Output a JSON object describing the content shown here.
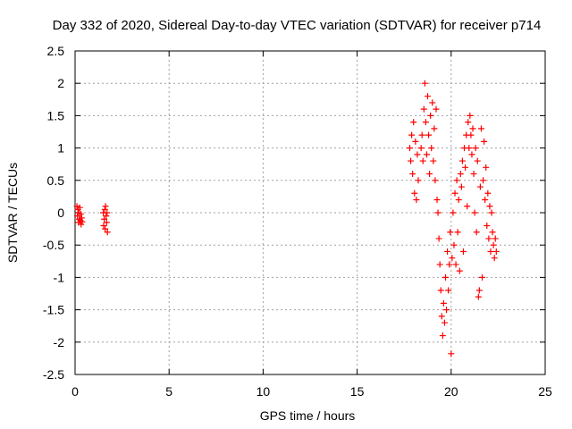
{
  "chart_data": {
    "type": "scatter",
    "title": "Day 332 of 2020, Sidereal Day-to-day VTEC variation (SDTVAR) for receiver p714",
    "xlabel": "GPS time / hours",
    "ylabel": "SDTVAR / TECUs",
    "xlim": [
      0,
      25
    ],
    "ylim": [
      -2.5,
      2.5
    ],
    "xticks": [
      "0",
      "5",
      "10",
      "15",
      "20",
      "25"
    ],
    "yticks": [
      "2.5",
      "2",
      "1.5",
      "1",
      "0.5",
      "0",
      "-0.5",
      "-1",
      "-1.5",
      "-2",
      "-2.5"
    ],
    "grid": true,
    "marker": "+",
    "color": "#ff0000",
    "series": [
      {
        "name": "SDTVAR",
        "points": [
          [
            0.1,
            0.1
          ],
          [
            0.12,
            -0.05
          ],
          [
            0.15,
            0.05
          ],
          [
            0.18,
            -0.15
          ],
          [
            0.2,
            0.0
          ],
          [
            0.22,
            -0.1
          ],
          [
            0.25,
            0.08
          ],
          [
            0.28,
            -0.12
          ],
          [
            0.3,
            -0.02
          ],
          [
            0.32,
            -0.18
          ],
          [
            0.35,
            -0.08
          ],
          [
            0.38,
            -0.14
          ],
          [
            1.5,
            0.0
          ],
          [
            1.52,
            -0.2
          ],
          [
            1.55,
            -0.1
          ],
          [
            1.58,
            0.05
          ],
          [
            1.6,
            -0.25
          ],
          [
            1.62,
            0.1
          ],
          [
            1.65,
            -0.05
          ],
          [
            1.68,
            -0.15
          ],
          [
            1.7,
            0.0
          ],
          [
            1.72,
            -0.3
          ],
          [
            17.8,
            1.0
          ],
          [
            17.85,
            0.8
          ],
          [
            17.9,
            1.2
          ],
          [
            17.95,
            0.6
          ],
          [
            18.0,
            1.4
          ],
          [
            18.05,
            0.3
          ],
          [
            18.1,
            1.1
          ],
          [
            18.15,
            0.2
          ],
          [
            18.2,
            0.9
          ],
          [
            18.25,
            0.5
          ],
          [
            18.4,
            1.0
          ],
          [
            18.45,
            1.2
          ],
          [
            18.5,
            0.8
          ],
          [
            18.55,
            1.6
          ],
          [
            18.6,
            2.0
          ],
          [
            18.65,
            1.4
          ],
          [
            18.7,
            0.9
          ],
          [
            18.75,
            1.8
          ],
          [
            18.8,
            1.2
          ],
          [
            18.85,
            0.6
          ],
          [
            18.9,
            1.5
          ],
          [
            18.95,
            1.0
          ],
          [
            19.0,
            1.7
          ],
          [
            19.05,
            0.8
          ],
          [
            19.1,
            1.3
          ],
          [
            19.15,
            0.5
          ],
          [
            19.2,
            1.6
          ],
          [
            19.25,
            0.2
          ],
          [
            19.3,
            0.0
          ],
          [
            19.35,
            -0.4
          ],
          [
            19.4,
            -0.8
          ],
          [
            19.45,
            -1.2
          ],
          [
            19.5,
            -1.6
          ],
          [
            19.55,
            -1.9
          ],
          [
            19.6,
            -1.4
          ],
          [
            19.65,
            -1.7
          ],
          [
            19.7,
            -1.0
          ],
          [
            19.75,
            -1.5
          ],
          [
            19.8,
            -0.6
          ],
          [
            19.85,
            -1.2
          ],
          [
            19.9,
            -0.8
          ],
          [
            19.95,
            -0.3
          ],
          [
            20.0,
            -2.18
          ],
          [
            20.05,
            -0.7
          ],
          [
            20.1,
            0.0
          ],
          [
            20.15,
            -0.5
          ],
          [
            20.2,
            0.3
          ],
          [
            20.25,
            -0.8
          ],
          [
            20.3,
            0.5
          ],
          [
            20.35,
            -0.3
          ],
          [
            20.4,
            0.2
          ],
          [
            20.45,
            -0.9
          ],
          [
            20.5,
            0.6
          ],
          [
            20.55,
            0.4
          ],
          [
            20.6,
            0.8
          ],
          [
            20.65,
            -0.6
          ],
          [
            20.7,
            1.0
          ],
          [
            20.75,
            0.7
          ],
          [
            20.8,
            1.2
          ],
          [
            20.85,
            0.1
          ],
          [
            20.9,
            1.4
          ],
          [
            20.95,
            1.0
          ],
          [
            21.0,
            1.5
          ],
          [
            21.05,
            1.2
          ],
          [
            21.1,
            0.9
          ],
          [
            21.15,
            1.3
          ],
          [
            21.2,
            0.6
          ],
          [
            21.25,
            0.0
          ],
          [
            21.3,
            1.0
          ],
          [
            21.35,
            -0.3
          ],
          [
            21.4,
            0.8
          ],
          [
            21.45,
            -1.3
          ],
          [
            21.5,
            -1.2
          ],
          [
            21.55,
            0.4
          ],
          [
            21.6,
            1.3
          ],
          [
            21.65,
            -1.0
          ],
          [
            21.7,
            0.5
          ],
          [
            21.75,
            1.1
          ],
          [
            21.8,
            0.2
          ],
          [
            21.85,
            0.7
          ],
          [
            21.9,
            -0.2
          ],
          [
            21.95,
            0.3
          ],
          [
            22.0,
            -0.4
          ],
          [
            22.05,
            0.1
          ],
          [
            22.1,
            -0.6
          ],
          [
            22.15,
            0.0
          ],
          [
            22.2,
            -0.3
          ],
          [
            22.25,
            -0.5
          ],
          [
            22.3,
            -0.7
          ],
          [
            22.35,
            -0.4
          ],
          [
            22.4,
            -0.6
          ]
        ]
      }
    ]
  }
}
